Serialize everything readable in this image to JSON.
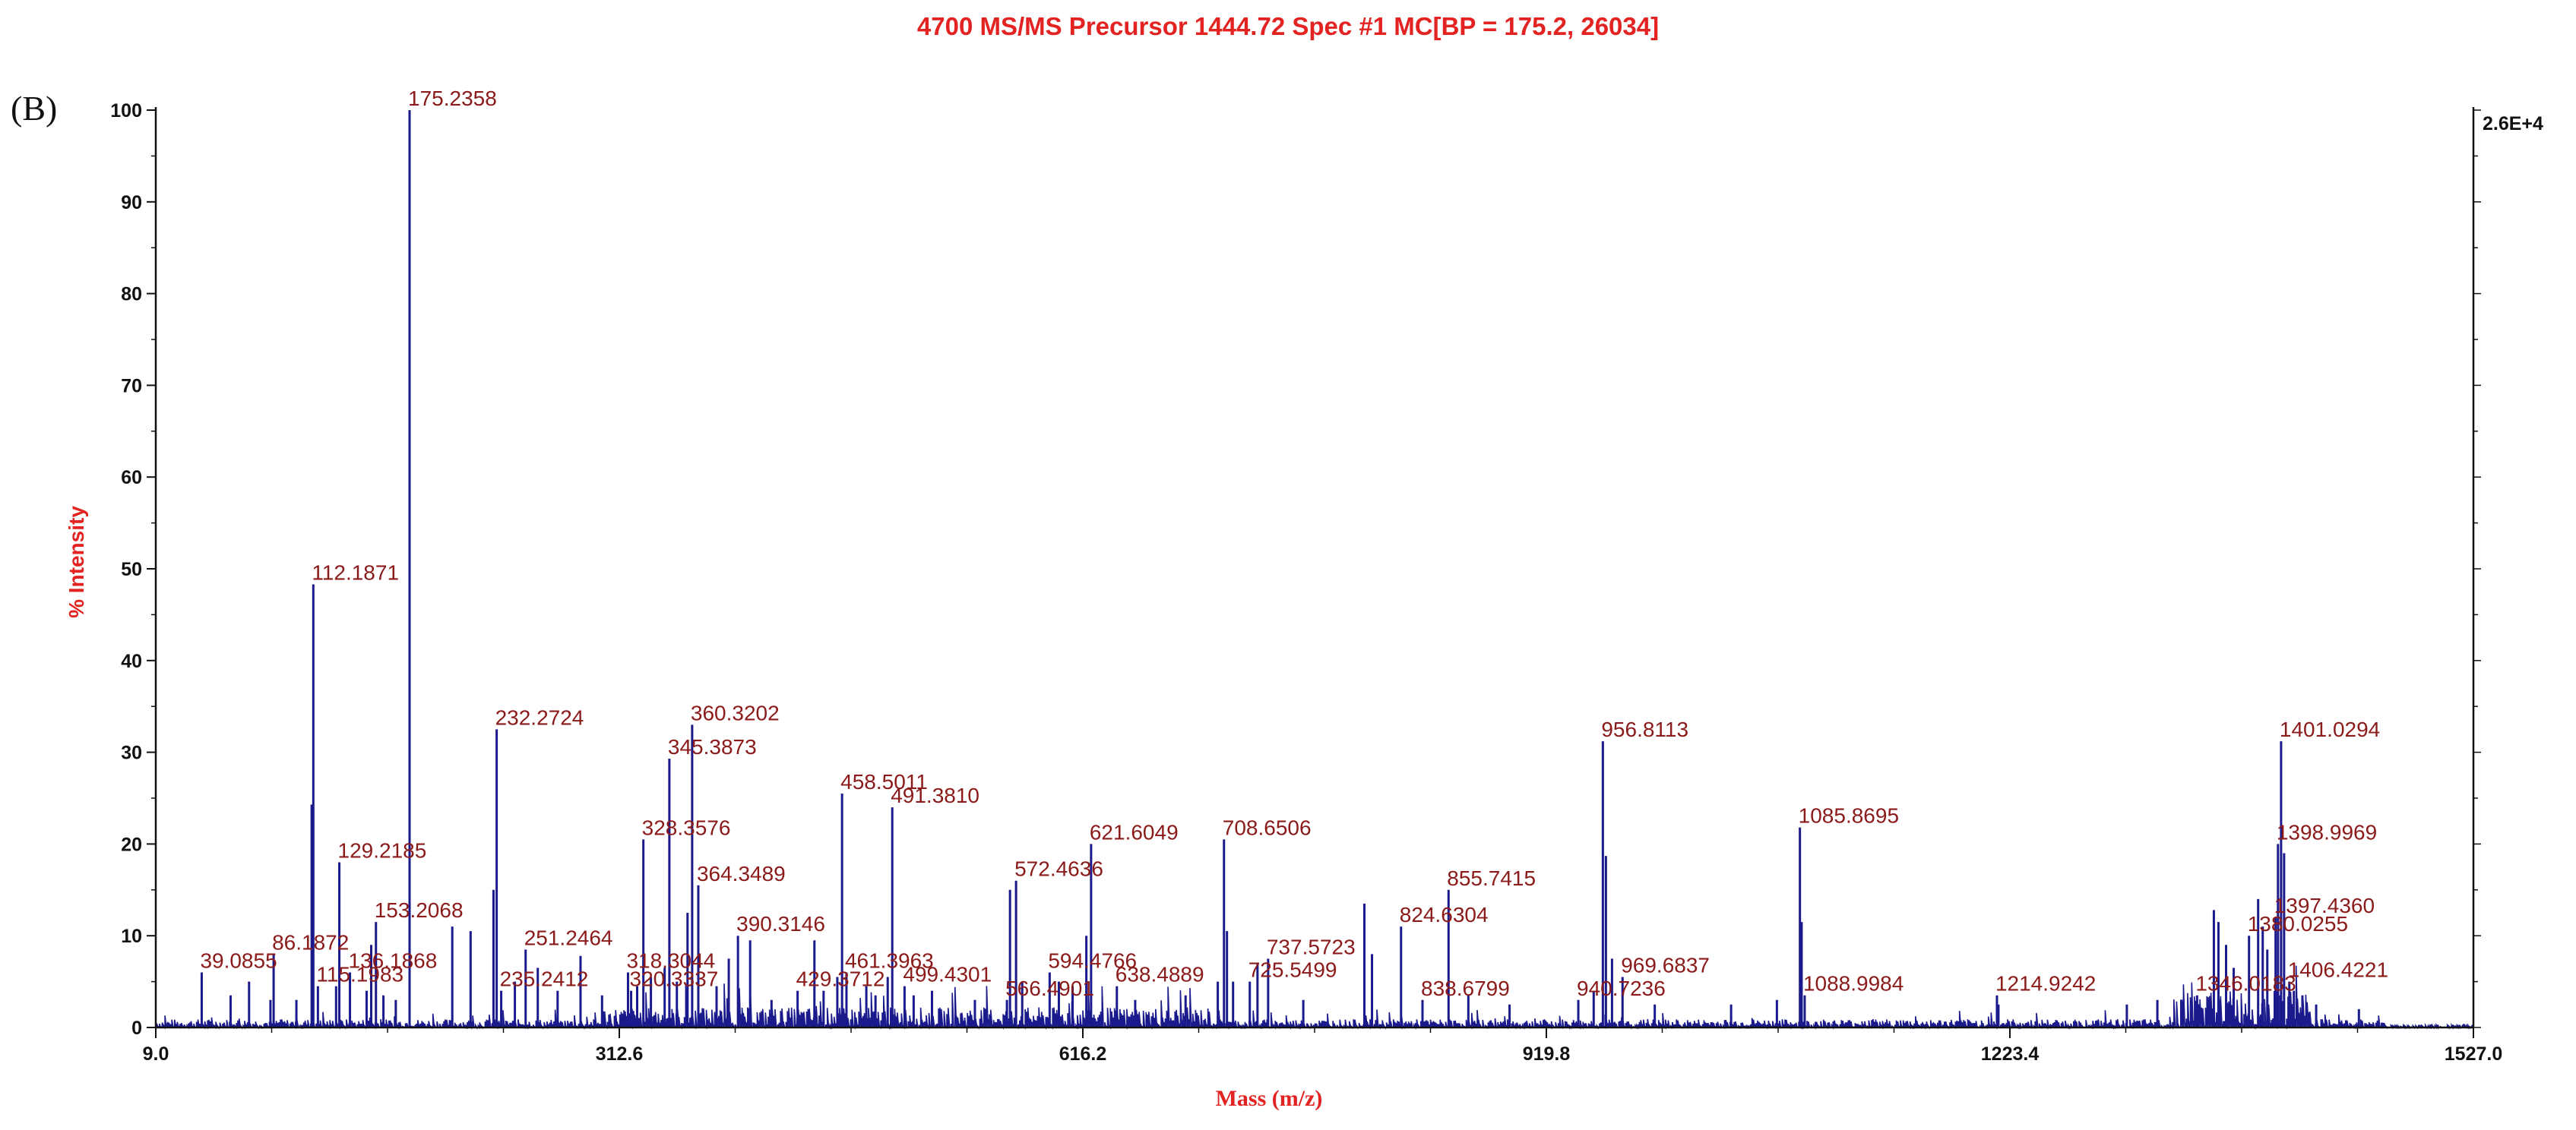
{
  "panel_label": "(B)",
  "scale_label": "2.6E+4",
  "chart_data": {
    "type": "line",
    "title": "4700 MS/MS Precursor 1444.72 Spec #1 MC[BP = 175.2, 26034]",
    "xlabel": "Mass (m/z)",
    "ylabel": "% Intensity",
    "xlim": [
      9.0,
      1527.0
    ],
    "ylim": [
      0,
      100
    ],
    "x_ticks": [
      "9.0",
      "312.6",
      "616.2",
      "919.8",
      "1223.4",
      "1527.0"
    ],
    "y_ticks": [
      "0",
      "10",
      "20",
      "30",
      "40",
      "50",
      "60",
      "70",
      "80",
      "90",
      "100"
    ],
    "colors": {
      "title": "#e32222",
      "series": "#1a1a8c",
      "label": "#8b1a1a",
      "axis": "#111111"
    },
    "labeled_peaks": [
      {
        "mz": 39.0855,
        "intensity": 6.0,
        "label": "39.0855"
      },
      {
        "mz": 86.1872,
        "intensity": 8.0,
        "label": "86.1872"
      },
      {
        "mz": 112.1871,
        "intensity": 48.3,
        "label": "112.1871"
      },
      {
        "mz": 115.1983,
        "intensity": 4.5,
        "label": "115.1983"
      },
      {
        "mz": 129.2185,
        "intensity": 18.0,
        "label": "129.2185"
      },
      {
        "mz": 136.1868,
        "intensity": 6.0,
        "label": "136.1868"
      },
      {
        "mz": 153.2068,
        "intensity": 11.5,
        "label": "153.2068"
      },
      {
        "mz": 175.2358,
        "intensity": 100.0,
        "label": "175.2358"
      },
      {
        "mz": 232.2724,
        "intensity": 32.5,
        "label": "232.2724"
      },
      {
        "mz": 235.2412,
        "intensity": 4.0,
        "label": "235.2412"
      },
      {
        "mz": 251.2464,
        "intensity": 8.5,
        "label": "251.2464"
      },
      {
        "mz": 318.3044,
        "intensity": 6.0,
        "label": "318.3044"
      },
      {
        "mz": 320.3337,
        "intensity": 4.0,
        "label": "320.3337"
      },
      {
        "mz": 328.3576,
        "intensity": 20.5,
        "label": "328.3576"
      },
      {
        "mz": 345.3873,
        "intensity": 29.3,
        "label": "345.3873"
      },
      {
        "mz": 360.3202,
        "intensity": 33.0,
        "label": "360.3202"
      },
      {
        "mz": 364.3489,
        "intensity": 15.5,
        "label": "364.3489"
      },
      {
        "mz": 390.3146,
        "intensity": 10.0,
        "label": "390.3146"
      },
      {
        "mz": 429.3712,
        "intensity": 4.0,
        "label": "429.3712"
      },
      {
        "mz": 458.5011,
        "intensity": 25.5,
        "label": "458.5011"
      },
      {
        "mz": 461.3963,
        "intensity": 6.0,
        "label": "461.3963"
      },
      {
        "mz": 491.381,
        "intensity": 24.0,
        "label": "491.3810"
      },
      {
        "mz": 499.4301,
        "intensity": 4.5,
        "label": "499.4301"
      },
      {
        "mz": 566.4901,
        "intensity": 3.0,
        "label": "566.4901"
      },
      {
        "mz": 572.4636,
        "intensity": 16.0,
        "label": "572.4636"
      },
      {
        "mz": 594.4766,
        "intensity": 6.0,
        "label": "594.4766"
      },
      {
        "mz": 621.6049,
        "intensity": 20.0,
        "label": "621.6049"
      },
      {
        "mz": 638.4889,
        "intensity": 4.5,
        "label": "638.4889"
      },
      {
        "mz": 708.6506,
        "intensity": 20.5,
        "label": "708.6506"
      },
      {
        "mz": 725.5499,
        "intensity": 5.0,
        "label": "725.5499"
      },
      {
        "mz": 737.5723,
        "intensity": 7.5,
        "label": "737.5723"
      },
      {
        "mz": 824.6304,
        "intensity": 11.0,
        "label": "824.6304"
      },
      {
        "mz": 838.6799,
        "intensity": 3.0,
        "label": "838.6799"
      },
      {
        "mz": 855.7415,
        "intensity": 15.0,
        "label": "855.7415"
      },
      {
        "mz": 940.7236,
        "intensity": 3.0,
        "label": "940.7236"
      },
      {
        "mz": 956.8113,
        "intensity": 31.2,
        "label": "956.8113"
      },
      {
        "mz": 969.6837,
        "intensity": 5.5,
        "label": "969.6837"
      },
      {
        "mz": 1085.8695,
        "intensity": 21.8,
        "label": "1085.8695"
      },
      {
        "mz": 1088.9984,
        "intensity": 3.5,
        "label": "1088.9984"
      },
      {
        "mz": 1214.9242,
        "intensity": 3.5,
        "label": "1214.9242"
      },
      {
        "mz": 1346.0183,
        "intensity": 3.5,
        "label": "1346.0183"
      },
      {
        "mz": 1380.0255,
        "intensity": 10.0,
        "label": "1380.0255"
      },
      {
        "mz": 1397.436,
        "intensity": 12.0,
        "label": "1397.4360"
      },
      {
        "mz": 1398.9969,
        "intensity": 20.0,
        "label": "1398.9969"
      },
      {
        "mz": 1401.0294,
        "intensity": 31.2,
        "label": "1401.0294"
      },
      {
        "mz": 1406.4221,
        "intensity": 5.0,
        "label": "1406.4221"
      }
    ],
    "unlabeled_peaks": [
      {
        "mz": 58.0,
        "intensity": 3.5
      },
      {
        "mz": 70.1,
        "intensity": 5.0
      },
      {
        "mz": 84.1,
        "intensity": 3.0
      },
      {
        "mz": 101.1,
        "intensity": 3.0
      },
      {
        "mz": 111.1,
        "intensity": 24.3
      },
      {
        "mz": 127.1,
        "intensity": 4.5
      },
      {
        "mz": 147.1,
        "intensity": 4.0
      },
      {
        "mz": 150.1,
        "intensity": 9.0
      },
      {
        "mz": 158.1,
        "intensity": 3.5
      },
      {
        "mz": 166.2,
        "intensity": 3.0
      },
      {
        "mz": 203.2,
        "intensity": 11.0
      },
      {
        "mz": 215.2,
        "intensity": 10.5
      },
      {
        "mz": 230.2,
        "intensity": 15.0
      },
      {
        "mz": 244.2,
        "intensity": 5.0
      },
      {
        "mz": 259.2,
        "intensity": 6.5
      },
      {
        "mz": 272.2,
        "intensity": 4.0
      },
      {
        "mz": 287.2,
        "intensity": 7.8
      },
      {
        "mz": 301.3,
        "intensity": 3.5
      },
      {
        "mz": 324.3,
        "intensity": 4.5
      },
      {
        "mz": 333.3,
        "intensity": 5.5
      },
      {
        "mz": 342.3,
        "intensity": 6.5
      },
      {
        "mz": 350.3,
        "intensity": 5.0
      },
      {
        "mz": 357.3,
        "intensity": 12.5
      },
      {
        "mz": 376.3,
        "intensity": 4.5
      },
      {
        "mz": 384.3,
        "intensity": 7.5
      },
      {
        "mz": 398.3,
        "intensity": 9.5
      },
      {
        "mz": 412.3,
        "intensity": 3.0
      },
      {
        "mz": 440.4,
        "intensity": 9.5
      },
      {
        "mz": 446.4,
        "intensity": 4.0
      },
      {
        "mz": 455.4,
        "intensity": 5.5
      },
      {
        "mz": 474.4,
        "intensity": 4.5
      },
      {
        "mz": 480.4,
        "intensity": 3.5
      },
      {
        "mz": 488.4,
        "intensity": 5.5
      },
      {
        "mz": 505.4,
        "intensity": 3.5
      },
      {
        "mz": 517.4,
        "intensity": 4.0
      },
      {
        "mz": 545.5,
        "intensity": 3.0
      },
      {
        "mz": 568.5,
        "intensity": 15.0
      },
      {
        "mz": 576.5,
        "intensity": 5.0
      },
      {
        "mz": 600.5,
        "intensity": 5.0
      },
      {
        "mz": 609.5,
        "intensity": 4.5
      },
      {
        "mz": 618.5,
        "intensity": 10.0
      },
      {
        "mz": 650.5,
        "intensity": 3.0
      },
      {
        "mz": 683.5,
        "intensity": 3.5
      },
      {
        "mz": 704.6,
        "intensity": 5.0
      },
      {
        "mz": 710.6,
        "intensity": 10.5
      },
      {
        "mz": 714.6,
        "intensity": 5.0
      },
      {
        "mz": 730.6,
        "intensity": 7.0
      },
      {
        "mz": 760.6,
        "intensity": 3.0
      },
      {
        "mz": 800.6,
        "intensity": 13.5
      },
      {
        "mz": 805.6,
        "intensity": 8.0
      },
      {
        "mz": 868.7,
        "intensity": 3.5
      },
      {
        "mz": 895.7,
        "intensity": 2.5
      },
      {
        "mz": 950.8,
        "intensity": 4.0
      },
      {
        "mz": 958.8,
        "intensity": 18.7
      },
      {
        "mz": 962.8,
        "intensity": 7.5
      },
      {
        "mz": 990.8,
        "intensity": 2.5
      },
      {
        "mz": 1040.8,
        "intensity": 2.5
      },
      {
        "mz": 1070.8,
        "intensity": 3.0
      },
      {
        "mz": 1087.0,
        "intensity": 11.5
      },
      {
        "mz": 1215.9,
        "intensity": 2.5
      },
      {
        "mz": 1300.0,
        "intensity": 2.5
      },
      {
        "mz": 1320.0,
        "intensity": 3.0
      },
      {
        "mz": 1357.0,
        "intensity": 12.8
      },
      {
        "mz": 1360.0,
        "intensity": 11.5
      },
      {
        "mz": 1365.0,
        "intensity": 9.0
      },
      {
        "mz": 1370.0,
        "intensity": 6.5
      },
      {
        "mz": 1386.0,
        "intensity": 14.0
      },
      {
        "mz": 1389.0,
        "intensity": 11.0
      },
      {
        "mz": 1392.0,
        "intensity": 8.5
      },
      {
        "mz": 1403.0,
        "intensity": 19.0
      },
      {
        "mz": 1409.4,
        "intensity": 4.0
      },
      {
        "mz": 1415.0,
        "intensity": 3.5
      },
      {
        "mz": 1424.0,
        "intensity": 2.5
      },
      {
        "mz": 1452.0,
        "intensity": 2.0
      }
    ]
  }
}
